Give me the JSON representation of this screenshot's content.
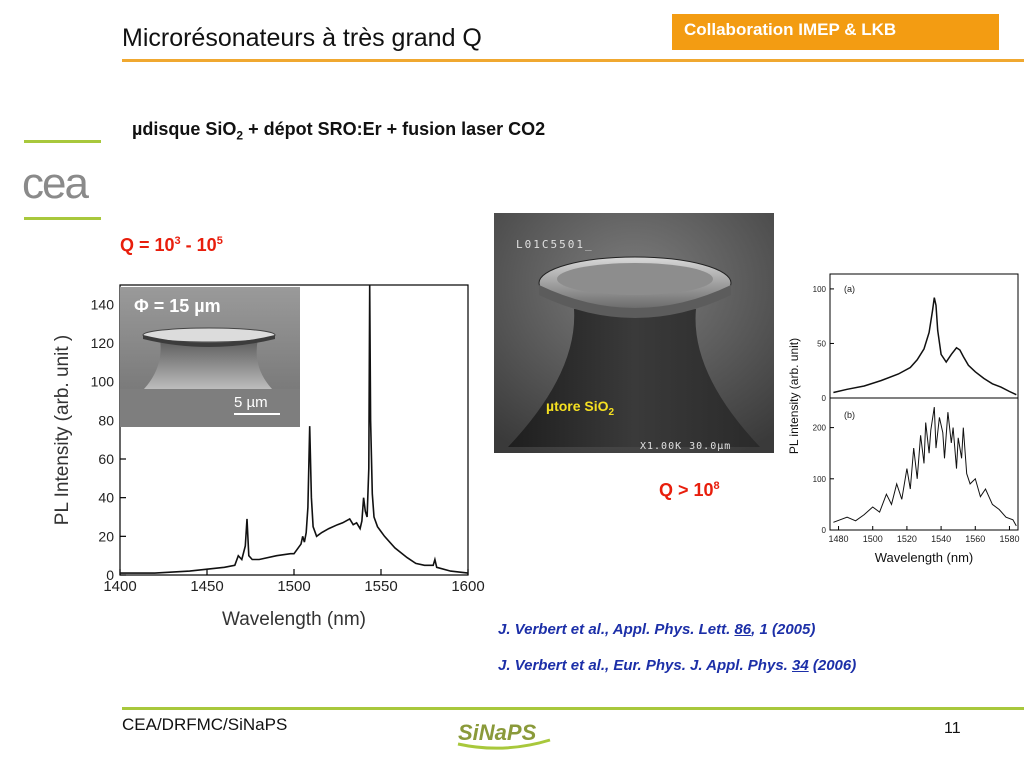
{
  "slide": {
    "title": "Microrésonateurs à très grand Q",
    "collaboration": "Collaboration IMEP & LKB",
    "heading": {
      "prefix": "µdisque SiO",
      "sub": "2",
      "suffix": " + dépot SRO:Er + fusion laser CO2"
    },
    "q_low": {
      "prefix": "Q = 10",
      "exp1": "3",
      "mid": " - 10",
      "exp2": "5"
    },
    "q_high": {
      "prefix": "Q > 10",
      "exp": "8"
    },
    "inset_disk": {
      "diameter_label": "Φ = 15 µm",
      "scale_label": "5 µm"
    },
    "sem_tore": {
      "header_text": "L01C5501_",
      "label_prefix": "µtore SiO",
      "label_sub": "2",
      "footer_text": "X1.00K  30.0µm"
    },
    "references": [
      {
        "before": "J. Verbert et al., Appl. Phys. Lett. ",
        "volume": "86",
        "after": ", 1 (2005)"
      },
      {
        "before": "J. Verbert et al., Eur. Phys. J. Appl. Phys. ",
        "volume": "34",
        "after": " (2006)"
      }
    ],
    "footer": {
      "org": "CEA/DRFMC/SiNaPS",
      "page": "11",
      "logo_text": "SiNaPS"
    },
    "cea_logo_text": "cea"
  },
  "colors": {
    "accent_orange": "#f39c12",
    "rule_orange": "#f0a830",
    "rule_green": "#a8c83c",
    "q_red": "#e81e0c",
    "ref_blue": "#1c2fa8"
  },
  "chart_data": [
    {
      "type": "line",
      "xlabel": "Wavelength (nm)",
      "ylabel": "PL Intensity (arb. unit )",
      "xlim": [
        1400,
        1600
      ],
      "ylim": [
        0,
        150
      ],
      "xticks": [
        1400,
        1450,
        1500,
        1550,
        1600
      ],
      "xtick_labels": [
        "1400",
        "1450",
        "1500",
        "1550",
        "1600"
      ],
      "yticks": [
        0,
        20,
        40,
        60,
        80,
        100,
        120,
        140
      ],
      "series": [
        {
          "x": [
            1400,
            1420,
            1440,
            1450,
            1460,
            1466,
            1468,
            1470,
            1472,
            1473,
            1474,
            1476,
            1480,
            1490,
            1498,
            1500,
            1504,
            1505,
            1506,
            1507,
            1508,
            1509,
            1510,
            1511,
            1513,
            1516,
            1520,
            1525,
            1528,
            1532,
            1534,
            1536,
            1538,
            1539,
            1540,
            1541,
            1542,
            1543,
            1543.5,
            1544,
            1545,
            1546,
            1548,
            1552,
            1558,
            1565,
            1570,
            1575,
            1580,
            1581,
            1582,
            1590,
            1600
          ],
          "y": [
            1,
            1,
            2,
            3,
            4,
            5,
            10,
            8,
            15,
            29,
            10,
            8,
            8,
            10,
            11,
            11,
            16,
            20,
            17,
            22,
            35,
            77,
            40,
            25,
            20,
            22,
            24,
            26,
            27,
            29,
            26,
            27,
            24,
            28,
            40,
            33,
            30,
            55,
            150,
            80,
            42,
            30,
            25,
            20,
            14,
            9,
            6,
            5,
            5,
            8,
            4,
            2,
            1
          ]
        }
      ]
    },
    {
      "type": "line",
      "xlabel": "Wavelength (nm)",
      "ylabel": "PL intensity (arb. unit)",
      "xlim": [
        1475,
        1585
      ],
      "xticks": [
        1480,
        1500,
        1520,
        1540,
        1560,
        1580
      ],
      "xtick_labels": [
        "1480",
        "1500",
        "1520",
        "1540",
        "1560",
        "1580"
      ],
      "panels": [
        {
          "label": "(a)",
          "ylim": [
            0,
            110
          ],
          "yticks": [
            0,
            50,
            100
          ],
          "x": [
            1477,
            1485,
            1495,
            1505,
            1515,
            1522,
            1526,
            1530,
            1533,
            1535,
            1536,
            1537,
            1538,
            1540,
            1543,
            1546,
            1549,
            1551,
            1553,
            1556,
            1560,
            1565,
            1570,
            1575,
            1580,
            1584
          ],
          "y": [
            5,
            8,
            11,
            16,
            22,
            28,
            35,
            45,
            60,
            80,
            92,
            85,
            62,
            40,
            33,
            40,
            46,
            44,
            38,
            30,
            24,
            18,
            13,
            10,
            6,
            3
          ]
        },
        {
          "label": "(b)",
          "ylim": [
            0,
            250
          ],
          "yticks": [
            0,
            100,
            200
          ],
          "x": [
            1477,
            1485,
            1490,
            1495,
            1500,
            1504,
            1508,
            1511,
            1514,
            1517,
            1520,
            1522,
            1524,
            1526,
            1528,
            1530,
            1531,
            1533,
            1534,
            1536,
            1537,
            1539,
            1541,
            1542,
            1544,
            1546,
            1547,
            1549,
            1550,
            1552,
            1553,
            1555,
            1557,
            1560,
            1563,
            1566,
            1570,
            1574,
            1578,
            1582,
            1584
          ],
          "y": [
            15,
            25,
            18,
            30,
            45,
            35,
            70,
            50,
            90,
            60,
            120,
            80,
            160,
            100,
            185,
            130,
            210,
            150,
            195,
            240,
            160,
            220,
            190,
            140,
            230,
            170,
            200,
            120,
            180,
            140,
            200,
            110,
            90,
            100,
            65,
            80,
            50,
            40,
            25,
            20,
            8
          ]
        }
      ]
    }
  ]
}
